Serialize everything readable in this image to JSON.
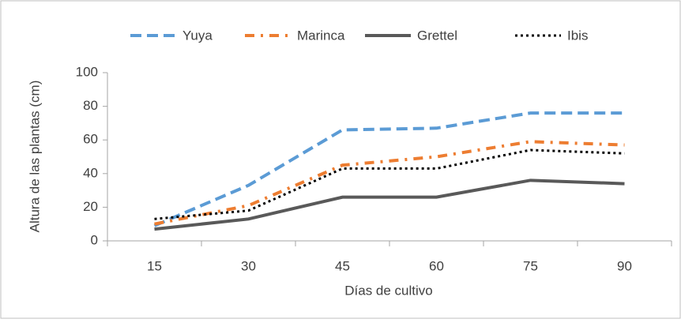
{
  "chart_data": {
    "type": "line",
    "x_label": "Días de cultivo",
    "y_label": "Altura de las plantas (cm)",
    "categories": [
      15,
      30,
      45,
      60,
      75,
      90
    ],
    "series": [
      {
        "name": "Yuya",
        "color": "#5b9bd5",
        "dash": "dash",
        "values": [
          9,
          33,
          66,
          67,
          76,
          76
        ]
      },
      {
        "name": "Marinca",
        "color": "#ed7d31",
        "dash": "dashdot",
        "values": [
          10,
          21,
          45,
          50,
          59,
          57
        ]
      },
      {
        "name": "Grettel",
        "color": "#595959",
        "dash": "solid",
        "values": [
          7,
          13,
          26,
          26,
          36,
          34
        ]
      },
      {
        "name": "Ibis",
        "color": "#000000",
        "dash": "dot",
        "values": [
          13,
          18,
          43,
          43,
          54,
          52
        ]
      }
    ],
    "ylim": [
      0,
      100
    ],
    "yticks": [
      0,
      20,
      40,
      60,
      80,
      100
    ],
    "grid": false,
    "legend": "top"
  }
}
